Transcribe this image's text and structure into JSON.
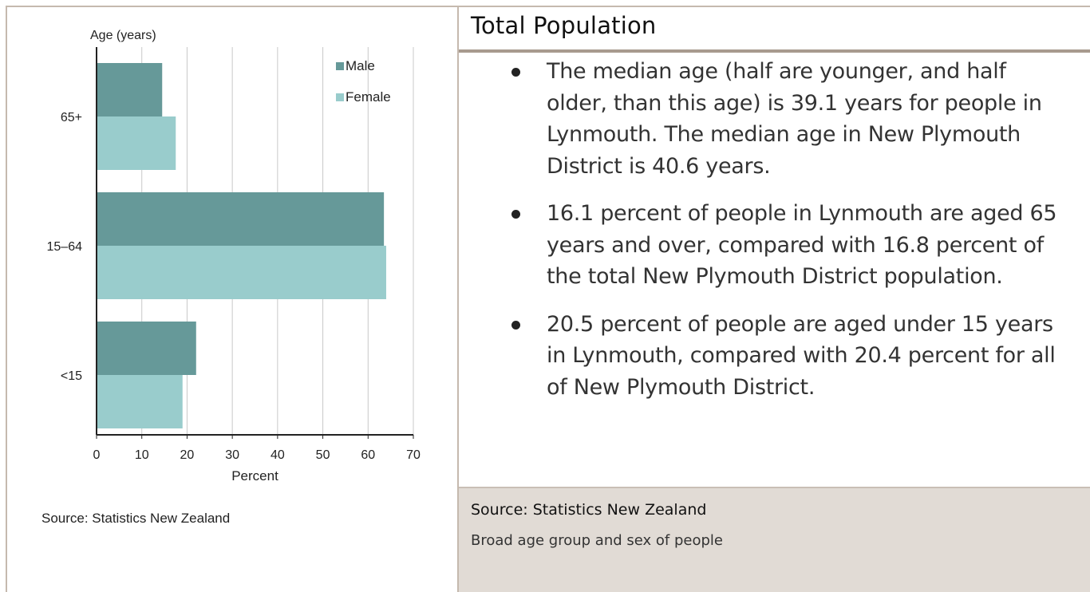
{
  "chart_data": {
    "type": "bar",
    "orientation": "horizontal",
    "categories": [
      "65+",
      "15–64",
      "<15"
    ],
    "series": [
      {
        "name": "Male",
        "values": [
          14.5,
          63.5,
          22.0
        ],
        "color": "#669999"
      },
      {
        "name": "Female",
        "values": [
          17.5,
          64.0,
          19.0
        ],
        "color": "#99cccc"
      }
    ],
    "xlabel": "Percent",
    "ylabel": "Age (years)",
    "xlim": [
      0,
      70
    ],
    "xticks": [
      "0",
      "10",
      "20",
      "30",
      "40",
      "50",
      "60",
      "70"
    ],
    "grid": true,
    "legend_position": "top-right"
  },
  "left": {
    "source": "Source: Statistics New Zealand"
  },
  "right": {
    "title": "Total Population",
    "bullets": [
      "The median age (half are younger, and half older, than this age) is 39.1 years for people in Lynmouth. The median age in New Plymouth District is 40.6 years.",
      "16.1 percent of people in Lynmouth are aged 65 years and over, compared with 16.8 percent of the total New Plymouth District population.",
      "20.5 percent of people are aged under 15 years in Lynmouth, compared with 20.4 percent for all of New Plymouth District."
    ],
    "footer_source": "Source: Statistics New Zealand",
    "footer_caption": "Broad age group and sex of people"
  }
}
